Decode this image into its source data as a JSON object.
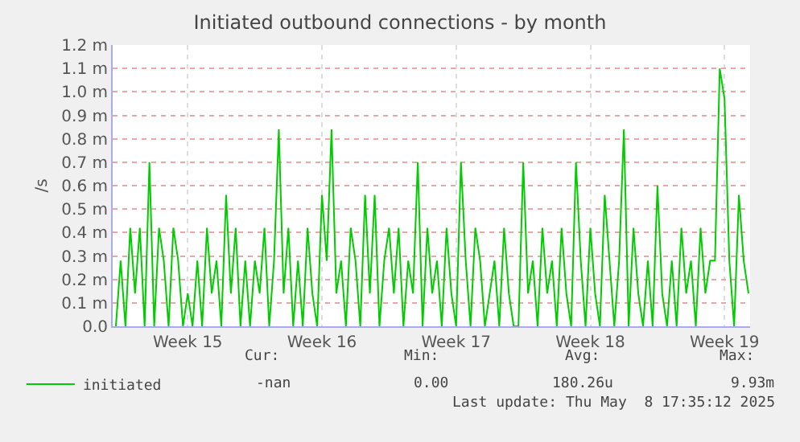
{
  "chart_data": {
    "type": "line",
    "title": "Initiated outbound connections - by month",
    "ylabel": "/s",
    "x": [
      "2025-04-06T18:00",
      "2025-04-07T00:00",
      "2025-04-07T06:00",
      "2025-04-07T12:00",
      "2025-04-07T18:00",
      "2025-04-08T00:00",
      "2025-04-08T06:00",
      "2025-04-08T12:00",
      "2025-04-08T18:00",
      "2025-04-09T00:00",
      "2025-04-09T06:00",
      "2025-04-09T12:00",
      "2025-04-09T18:00",
      "2025-04-10T00:00",
      "2025-04-10T06:00",
      "2025-04-10T12:00",
      "2025-04-10T18:00",
      "2025-04-11T00:00",
      "2025-04-11T06:00",
      "2025-04-11T12:00",
      "2025-04-11T18:00",
      "2025-04-12T00:00",
      "2025-04-12T06:00",
      "2025-04-12T12:00",
      "2025-04-12T18:00",
      "2025-04-13T00:00",
      "2025-04-13T06:00",
      "2025-04-13T12:00",
      "2025-04-13T18:00",
      "2025-04-14T00:00",
      "2025-04-14T06:00",
      "2025-04-14T12:00",
      "2025-04-14T18:00",
      "2025-04-15T00:00",
      "2025-04-15T06:00",
      "2025-04-15T12:00",
      "2025-04-15T18:00",
      "2025-04-16T00:00",
      "2025-04-16T06:00",
      "2025-04-16T12:00",
      "2025-04-16T18:00",
      "2025-04-17T00:00",
      "2025-04-17T06:00",
      "2025-04-17T12:00",
      "2025-04-17T18:00",
      "2025-04-18T00:00",
      "2025-04-18T06:00",
      "2025-04-18T12:00",
      "2025-04-18T18:00",
      "2025-04-19T00:00",
      "2025-04-19T06:00",
      "2025-04-19T12:00",
      "2025-04-19T18:00",
      "2025-04-20T00:00",
      "2025-04-20T06:00",
      "2025-04-20T12:00",
      "2025-04-20T18:00",
      "2025-04-21T00:00",
      "2025-04-21T06:00",
      "2025-04-21T12:00",
      "2025-04-21T18:00",
      "2025-04-22T00:00",
      "2025-04-22T06:00",
      "2025-04-22T12:00",
      "2025-04-22T18:00",
      "2025-04-23T00:00",
      "2025-04-23T06:00",
      "2025-04-23T12:00",
      "2025-04-23T18:00",
      "2025-04-24T00:00",
      "2025-04-24T06:00",
      "2025-04-24T12:00",
      "2025-04-24T18:00",
      "2025-04-25T00:00",
      "2025-04-25T06:00",
      "2025-04-25T12:00",
      "2025-04-25T18:00",
      "2025-04-26T00:00",
      "2025-04-26T06:00",
      "2025-04-26T12:00",
      "2025-04-26T18:00",
      "2025-04-27T00:00",
      "2025-04-27T06:00",
      "2025-04-27T12:00",
      "2025-04-27T18:00",
      "2025-04-28T00:00",
      "2025-04-28T06:00",
      "2025-04-28T12:00",
      "2025-04-28T18:00",
      "2025-04-29T00:00",
      "2025-04-29T06:00",
      "2025-04-29T12:00",
      "2025-04-29T18:00",
      "2025-04-30T00:00",
      "2025-04-30T06:00",
      "2025-04-30T12:00",
      "2025-04-30T18:00",
      "2025-05-01T00:00",
      "2025-05-01T06:00",
      "2025-05-01T12:00",
      "2025-05-01T18:00",
      "2025-05-02T00:00",
      "2025-05-02T06:00",
      "2025-05-02T12:00",
      "2025-05-02T18:00",
      "2025-05-03T00:00",
      "2025-05-03T06:00",
      "2025-05-03T12:00",
      "2025-05-03T18:00",
      "2025-05-04T00:00",
      "2025-05-04T06:00",
      "2025-05-04T12:00",
      "2025-05-04T18:00",
      "2025-05-05T00:00",
      "2025-05-05T06:00",
      "2025-05-05T12:00",
      "2025-05-05T18:00",
      "2025-05-06T00:00",
      "2025-05-06T06:00",
      "2025-05-06T12:00",
      "2025-05-06T18:00",
      "2025-05-07T00:00",
      "2025-05-07T06:00",
      "2025-05-07T12:00",
      "2025-05-07T18:00",
      "2025-05-08T00:00",
      "2025-05-08T06:00",
      "2025-05-08T12:00",
      "2025-05-08T18:00",
      "2025-05-09T00:00",
      "2025-05-09T06:00",
      "2025-05-09T12:00",
      "2025-05-09T18:00"
    ],
    "series": [
      {
        "name": "initiated",
        "color": "#00cc00",
        "values": [
          0,
          0.28,
          0,
          0.42,
          0.14,
          0.42,
          0,
          0.7,
          0,
          0.42,
          0.28,
          0,
          0.42,
          0.28,
          0,
          0.14,
          0,
          0.28,
          0,
          0.42,
          0.14,
          0.28,
          0,
          0.56,
          0.14,
          0.42,
          0,
          0.28,
          0,
          0.28,
          0.14,
          0.42,
          0,
          0.28,
          0.84,
          0.14,
          0.42,
          0,
          0.28,
          0,
          0.42,
          0.14,
          0,
          0.56,
          0.28,
          0.84,
          0.14,
          0.28,
          0,
          0.42,
          0.28,
          0,
          0.56,
          0.14,
          0.56,
          0,
          0.28,
          0.42,
          0.14,
          0.42,
          0,
          0.28,
          0.14,
          0.7,
          0,
          0.42,
          0.14,
          0.28,
          0,
          0.42,
          0.14,
          0,
          0.7,
          0.28,
          0,
          0.42,
          0.28,
          0,
          0.14,
          0.28,
          0,
          0.42,
          0.14,
          0,
          0,
          0.7,
          0.14,
          0.28,
          0,
          0.42,
          0.14,
          0.28,
          0,
          0.42,
          0.14,
          0,
          0.7,
          0.28,
          0,
          0.42,
          0.14,
          0,
          0.56,
          0.28,
          0,
          0.28,
          0.84,
          0,
          0.42,
          0.14,
          0,
          0.28,
          0,
          0.6,
          0.14,
          0,
          0.28,
          0,
          0.42,
          0.14,
          0.28,
          0,
          0.42,
          0.14,
          0.28,
          0.28,
          1.1,
          0.97,
          0.28,
          0,
          0.56,
          0.28,
          0.14
        ]
      }
    ],
    "xlim": [
      "2025-04-06T14:00",
      "2025-05-09T20:00"
    ],
    "xticks": [
      {
        "value": "2025-04-10T12:00",
        "label": "Week 15"
      },
      {
        "value": "2025-04-17T12:00",
        "label": "Week 16"
      },
      {
        "value": "2025-04-24T12:00",
        "label": "Week 17"
      },
      {
        "value": "2025-05-01T12:00",
        "label": "Week 18"
      },
      {
        "value": "2025-05-08T12:00",
        "label": "Week 19"
      }
    ],
    "ylim": [
      0,
      1.2
    ],
    "yticks": [
      {
        "value": 0,
        "label": "0.0"
      },
      {
        "value": 0.1,
        "label": "0.1 m"
      },
      {
        "value": 0.2,
        "label": "0.2 m"
      },
      {
        "value": 0.3,
        "label": "0.3 m"
      },
      {
        "value": 0.4,
        "label": "0.4 m"
      },
      {
        "value": 0.5,
        "label": "0.5 m"
      },
      {
        "value": 0.6,
        "label": "0.6 m"
      },
      {
        "value": 0.7,
        "label": "0.7 m"
      },
      {
        "value": 0.8,
        "label": "0.8 m"
      },
      {
        "value": 0.9,
        "label": "0.9 m"
      },
      {
        "value": 1.0,
        "label": "1.0 m"
      },
      {
        "value": 1.1,
        "label": "1.1 m"
      },
      {
        "value": 1.2,
        "label": "1.2 m"
      }
    ],
    "grid": true,
    "legend": "bottom left",
    "marker": "none",
    "line_style": "solid",
    "annotations": [
      "Cur:",
      "Min:",
      "Avg:",
      "Max:",
      "-nan",
      "0.00",
      "180.26u",
      "9.93m",
      "Last update: Thu May  8 17:35:12 2025"
    ]
  }
}
